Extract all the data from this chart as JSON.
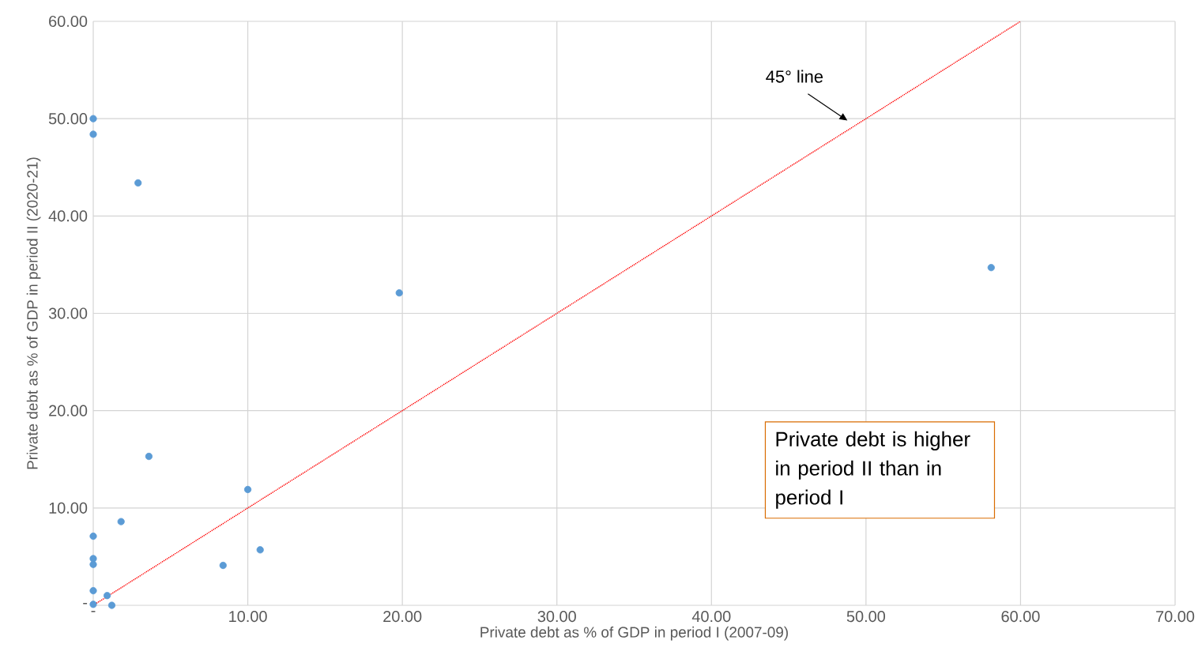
{
  "chart_data": {
    "type": "scatter",
    "xlabel": "Private debt  as % of GDP in period I (2007-09)",
    "ylabel": "Private debt as % of GDP in period II (2020-21)",
    "series": [
      {
        "color": "#5b9bd5",
        "marker": "circle",
        "x": [
          0,
          0,
          2.9,
          19.8,
          58.1,
          3.6,
          10.0,
          1.8,
          0,
          0,
          0,
          10.8,
          8.4,
          0,
          0.9,
          0,
          1.2
        ],
        "values": [
          50.0,
          48.4,
          43.4,
          32.1,
          34.7,
          15.3,
          11.9,
          8.6,
          7.1,
          4.8,
          4.2,
          5.7,
          4.1,
          1.5,
          1.0,
          0.1,
          0
        ]
      },
      {
        "type": "line",
        "color": "#ff0000",
        "marker": "none",
        "line_style": "dotted",
        "x": [
          0,
          60
        ],
        "values": [
          0,
          60
        ]
      }
    ],
    "xlim": [
      0,
      70
    ],
    "ylim": [
      0,
      60
    ],
    "xticks": [
      {
        "value": 0,
        "label": "-"
      },
      {
        "value": 10,
        "label": "10.00"
      },
      {
        "value": 20,
        "label": "20.00"
      },
      {
        "value": 30,
        "label": "30.00"
      },
      {
        "value": 40,
        "label": "40.00"
      },
      {
        "value": 50,
        "label": "50.00"
      },
      {
        "value": 60,
        "label": "60.00"
      },
      {
        "value": 70,
        "label": "70.00"
      }
    ],
    "yticks": [
      {
        "value": 0,
        "label": "-"
      },
      {
        "value": 10,
        "label": "10.00"
      },
      {
        "value": 20,
        "label": "20.00"
      },
      {
        "value": 30,
        "label": "30.00"
      },
      {
        "value": 40,
        "label": "40.00"
      },
      {
        "value": 50,
        "label": "50.00"
      },
      {
        "value": 60,
        "label": "60.00"
      }
    ],
    "grid": true,
    "annotations": [
      "45° line",
      "Private debt is higher in period II than in period I"
    ]
  }
}
